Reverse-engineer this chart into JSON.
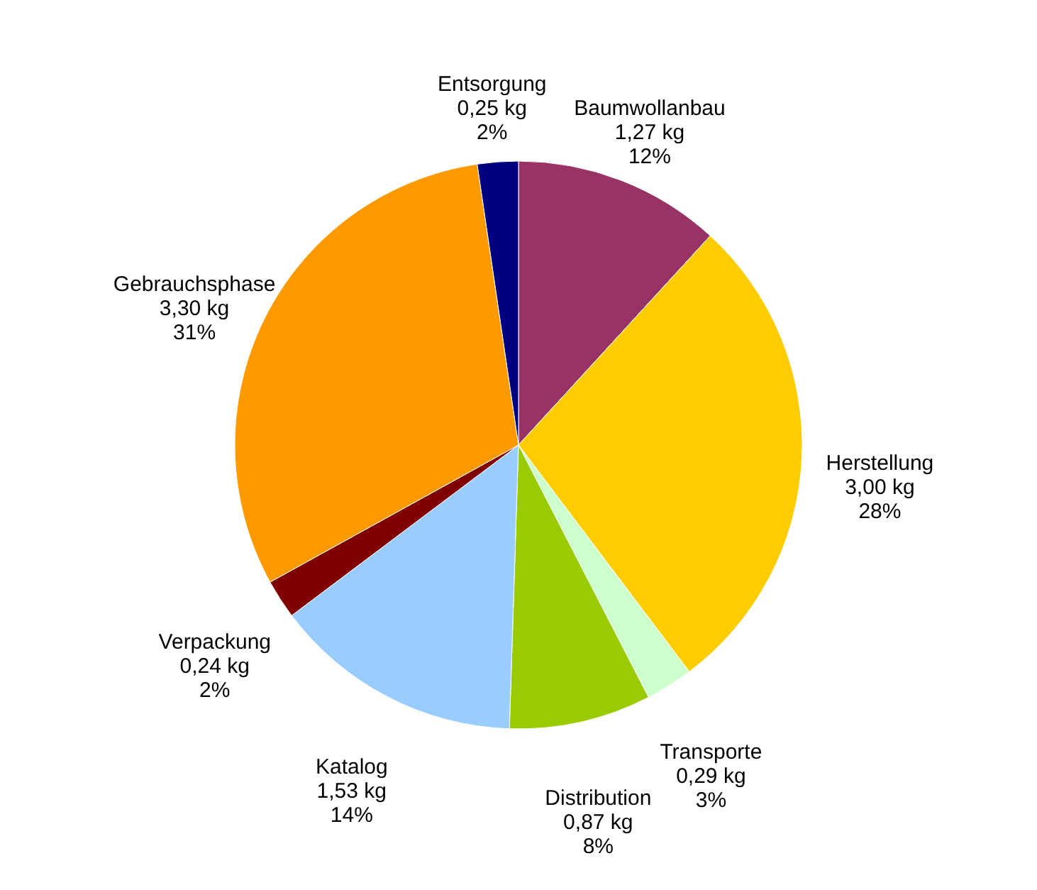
{
  "chart_data": {
    "type": "pie",
    "categories": [
      "Baumwollanbau",
      "Herstellung",
      "Transporte",
      "Distribution",
      "Katalog",
      "Verpackung",
      "Gebrauchsphase",
      "Entsorgung"
    ],
    "values": [
      1.27,
      3.0,
      0.29,
      0.87,
      1.53,
      0.24,
      3.3,
      0.25
    ],
    "value_labels": [
      "1,27 kg\n12%",
      "3,00 kg\n28%",
      "0,29 kg\n3%",
      "0,87 kg\n8%",
      "1,53 kg\n14%",
      "0,24 kg\n2%",
      "3,30 kg\n31%",
      "0,25 kg\n2%"
    ],
    "colors": [
      "#993366",
      "#ffcc00",
      "#ccffcc",
      "#99cc00",
      "#99ccff",
      "#800000",
      "#ff9900",
      "#000080"
    ],
    "legend": false
  }
}
